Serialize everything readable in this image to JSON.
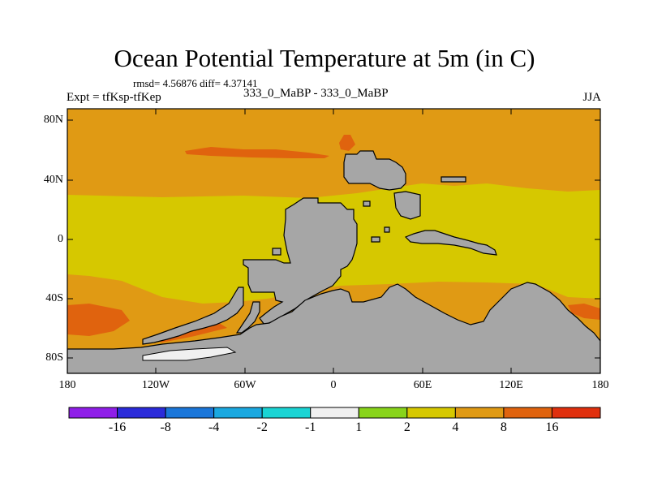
{
  "title": "Ocean Potential Temperature at 5m (in C)",
  "stats": "rmsd= 4.56876  diff= 4.37141",
  "expt": "Expt = tfKsp-tfKep",
  "center_label": "333_0_MaBP - 333_0_MaBP",
  "season": "JJA",
  "lat_ticks": [
    "80N",
    "40N",
    "0",
    "40S",
    "80S"
  ],
  "lon_ticks": [
    "180",
    "120W",
    "60W",
    "0",
    "60E",
    "120E",
    "180"
  ],
  "colors": {
    "land": "#a6a6a6",
    "background_ocean": "#e09a14",
    "warm_band": "#e0630e",
    "tropics": "#d6c800",
    "light_green": "#88d41a",
    "near_zero": "#f0f0f0"
  },
  "colorbar": {
    "colors": [
      "#8f1ee8",
      "#2b2bd9",
      "#1a76d9",
      "#1aa8e0",
      "#1ad4d4",
      "#f0f0f0",
      "#88d41a",
      "#d6c800",
      "#e09a14",
      "#e0630e",
      "#e0300e"
    ],
    "labels": [
      "-16",
      "-8",
      "-4",
      "-2",
      "-1",
      "1",
      "2",
      "4",
      "8",
      "16"
    ]
  }
}
